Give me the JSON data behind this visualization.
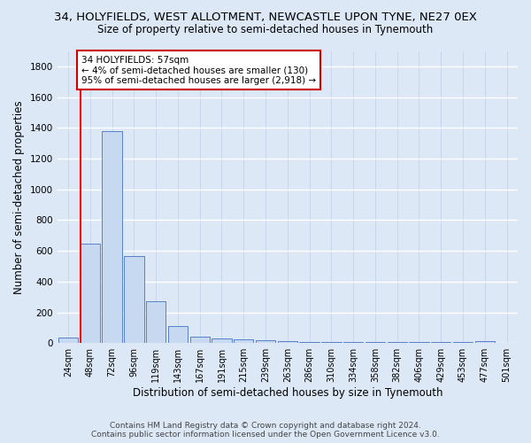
{
  "title1": "34, HOLYFIELDS, WEST ALLOTMENT, NEWCASTLE UPON TYNE, NE27 0EX",
  "title2": "Size of property relative to semi-detached houses in Tynemouth",
  "xlabel": "Distribution of semi-detached houses by size in Tynemouth",
  "ylabel": "Number of semi-detached properties",
  "footer1": "Contains HM Land Registry data © Crown copyright and database right 2024.",
  "footer2": "Contains public sector information licensed under the Open Government Licence v3.0.",
  "categories": [
    "24sqm",
    "48sqm",
    "72sqm",
    "96sqm",
    "119sqm",
    "143sqm",
    "167sqm",
    "191sqm",
    "215sqm",
    "239sqm",
    "263sqm",
    "286sqm",
    "310sqm",
    "334sqm",
    "358sqm",
    "382sqm",
    "406sqm",
    "429sqm",
    "453sqm",
    "477sqm",
    "501sqm"
  ],
  "values": [
    35,
    645,
    1380,
    565,
    270,
    110,
    40,
    30,
    25,
    20,
    15,
    5,
    5,
    5,
    5,
    5,
    5,
    5,
    5,
    15,
    0
  ],
  "bar_color": "#c6d9f0",
  "bar_edge_color": "#4472c4",
  "annotation_text": "34 HOLYFIELDS: 57sqm\n← 4% of semi-detached houses are smaller (130)\n95% of semi-detached houses are larger (2,918) →",
  "annotation_box_color": "#ffffff",
  "annotation_box_edge": "#cc0000",
  "ylim": [
    0,
    1900
  ],
  "background_color": "#dde8f7",
  "grid_color": "#c0cfe8",
  "title1_fontsize": 9.5,
  "title2_fontsize": 8.5,
  "tick_fontsize": 7.0,
  "ylabel_fontsize": 8.5,
  "xlabel_fontsize": 8.5,
  "footer_fontsize": 6.5
}
